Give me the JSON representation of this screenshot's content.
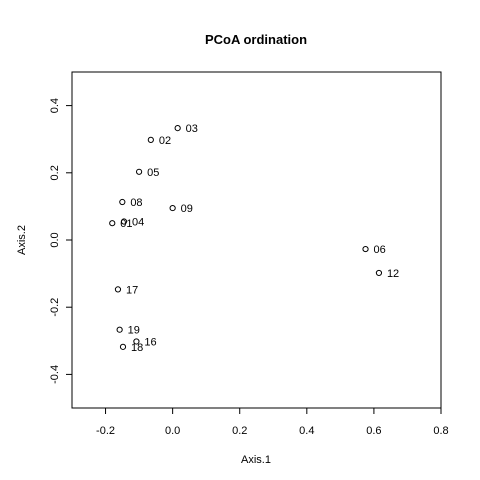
{
  "chart_data": {
    "type": "scatter",
    "title": "PCoA ordination",
    "xlabel": "Axis.1",
    "ylabel": "Axis.2",
    "xlim": [
      -0.3,
      0.8
    ],
    "ylim": [
      -0.5,
      0.5
    ],
    "xticks": [
      -0.2,
      0.0,
      0.2,
      0.4,
      0.6,
      0.8
    ],
    "xtick_labels": [
      "-0.2",
      "0.0",
      "0.2",
      "0.4",
      "0.6",
      "0.8"
    ],
    "yticks": [
      -0.4,
      -0.2,
      0.0,
      0.2,
      0.4
    ],
    "ytick_labels": [
      "-0.4",
      "-0.2",
      "0.0",
      "0.2",
      "0.4"
    ],
    "grid": false,
    "marker": "open-circle",
    "points": [
      {
        "label": "03",
        "x": 0.015,
        "y": 0.333
      },
      {
        "label": "02",
        "x": -0.065,
        "y": 0.298
      },
      {
        "label": "05",
        "x": -0.1,
        "y": 0.203
      },
      {
        "label": "08",
        "x": -0.15,
        "y": 0.113
      },
      {
        "label": "09",
        "x": 0.0,
        "y": 0.095
      },
      {
        "label": "01",
        "x": -0.18,
        "y": 0.05
      },
      {
        "label": "04",
        "x": -0.145,
        "y": 0.055
      },
      {
        "label": "06",
        "x": 0.575,
        "y": -0.027
      },
      {
        "label": "12",
        "x": 0.615,
        "y": -0.098
      },
      {
        "label": "17",
        "x": -0.163,
        "y": -0.147
      },
      {
        "label": "19",
        "x": -0.158,
        "y": -0.267
      },
      {
        "label": "16",
        "x": -0.108,
        "y": -0.302
      },
      {
        "label": "18",
        "x": -0.148,
        "y": -0.318
      }
    ]
  }
}
